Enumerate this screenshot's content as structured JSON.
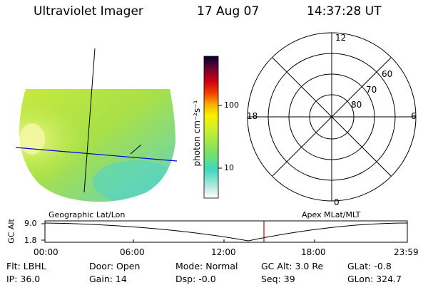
{
  "header": {
    "instrument": "Ultraviolet Imager",
    "date": "17 Aug 07",
    "time": "14:37:28 UT"
  },
  "colorbar": {
    "unit_label": "photon cm⁻²s⁻¹",
    "ticks": [
      "100",
      "10"
    ]
  },
  "polar_plot": {
    "mlt_labels": {
      "top": "12",
      "left": "18",
      "right": "6",
      "bottom": "0"
    },
    "lat_labels": [
      "60",
      "70",
      "80"
    ]
  },
  "timeline": {
    "y_axis_label": "GC Alt",
    "y_ticks": [
      "9.0",
      "1.8"
    ],
    "left_caption": "Geographic Lat/Lon",
    "right_caption": "Apex MLat/MLT",
    "time_ticks": [
      "00:00",
      "06:00",
      "12:00",
      "18:00",
      "23:59"
    ],
    "marker_color": "#d00000"
  },
  "status": {
    "flt": "Flt: LBHL",
    "ip": "IP: 36.0",
    "door": "Door: Open",
    "gain": "Gain: 14",
    "mode": "Mode: Normal",
    "dsp": "Dsp:   -0.0",
    "gc_alt": "GC Alt: 3.0 Re",
    "seq": "Seq: 39",
    "glat": "GLat:  -0.8",
    "glon": "GLon: 324.7"
  }
}
